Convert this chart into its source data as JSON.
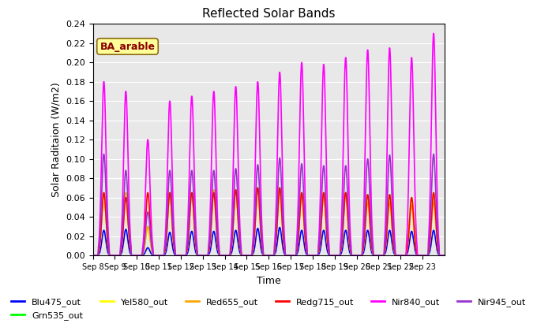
{
  "title": "Reflected Solar Bands",
  "ylabel": "Solar Raditaion (W/m2)",
  "xlabel": "Time",
  "ylim": [
    0.0,
    0.24
  ],
  "yticks": [
    0.0,
    0.02,
    0.04,
    0.06,
    0.08,
    0.1,
    0.12,
    0.14,
    0.16,
    0.18,
    0.2,
    0.22,
    0.24
  ],
  "annotation_text": "BA_arable",
  "annotation_color": "#8B0000",
  "annotation_bg": "#FFFF99",
  "annotation_edge": "#8B6914",
  "background_color": "#E8E8E8",
  "fig_bg": "#FFFFFF",
  "series": [
    {
      "name": "Blu475_out",
      "color": "#0000FF",
      "lw": 1.2
    },
    {
      "name": "Grn535_out",
      "color": "#00FF00",
      "lw": 1.2
    },
    {
      "name": "Yel580_out",
      "color": "#FFFF00",
      "lw": 1.2
    },
    {
      "name": "Red655_out",
      "color": "#FFA500",
      "lw": 1.2
    },
    {
      "name": "Redg715_out",
      "color": "#FF0000",
      "lw": 1.2
    },
    {
      "name": "Nir840_out",
      "color": "#FF00FF",
      "lw": 1.2
    },
    {
      "name": "Nir945_out",
      "color": "#9932CC",
      "lw": 1.2
    }
  ],
  "x_tick_labels": [
    "Sep 8",
    "Sep 9",
    "Sep 10",
    "Sep 11",
    "Sep 12",
    "Sep 13",
    "Sep 14",
    "Sep 15",
    "Sep 16",
    "Sep 17",
    "Sep 18",
    "Sep 19",
    "Sep 20",
    "Sep 21",
    "Sep 22",
    "Sep 23"
  ],
  "num_days": 16,
  "day_peaks_nir840": [
    0.18,
    0.17,
    0.12,
    0.16,
    0.165,
    0.17,
    0.175,
    0.18,
    0.19,
    0.2,
    0.198,
    0.205,
    0.213,
    0.215,
    0.205,
    0.23
  ],
  "day_peaks_nir945": [
    0.105,
    0.088,
    0.045,
    0.088,
    0.088,
    0.088,
    0.09,
    0.094,
    0.101,
    0.095,
    0.093,
    0.093,
    0.1,
    0.104,
    0.0,
    0.105
  ],
  "day_peaks_grn": [
    0.065,
    0.065,
    0.03,
    0.065,
    0.065,
    0.065,
    0.068,
    0.07,
    0.07,
    0.065,
    0.065,
    0.065,
    0.063,
    0.063,
    0.06,
    0.065
  ],
  "day_peaks_yel": [
    0.065,
    0.065,
    0.03,
    0.065,
    0.065,
    0.065,
    0.068,
    0.07,
    0.07,
    0.065,
    0.065,
    0.065,
    0.063,
    0.063,
    0.06,
    0.065
  ],
  "day_peaks_red655": [
    0.065,
    0.065,
    0.03,
    0.065,
    0.065,
    0.068,
    0.068,
    0.07,
    0.07,
    0.065,
    0.065,
    0.065,
    0.055,
    0.055,
    0.052,
    0.055
  ],
  "day_peaks_redg": [
    0.065,
    0.06,
    0.065,
    0.065,
    0.065,
    0.065,
    0.068,
    0.07,
    0.07,
    0.065,
    0.065,
    0.065,
    0.063,
    0.063,
    0.06,
    0.065
  ],
  "day_peaks_blu": [
    0.026,
    0.027,
    0.008,
    0.024,
    0.025,
    0.025,
    0.026,
    0.028,
    0.029,
    0.026,
    0.026,
    0.026,
    0.026,
    0.026,
    0.025,
    0.026
  ]
}
